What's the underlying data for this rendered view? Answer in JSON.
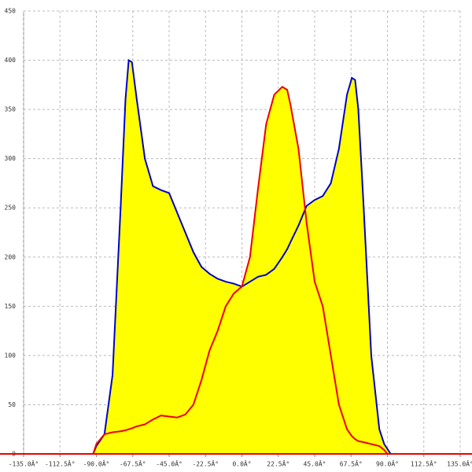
{
  "chart_data": {
    "type": "area",
    "x": [
      -92,
      -90,
      -85,
      -80,
      -75,
      -72,
      -70,
      -68,
      -65,
      -60,
      -55,
      -50,
      -45,
      -40,
      -35,
      -30,
      -25,
      -20,
      -15,
      -10,
      -5,
      0,
      5,
      10,
      15,
      20,
      25,
      28,
      30,
      35,
      40,
      45,
      50,
      55,
      60,
      65,
      68,
      70,
      72,
      75,
      80,
      85,
      88,
      90,
      92
    ],
    "series": [
      {
        "color": "#0000cc",
        "fill": "#ffff00",
        "values": [
          0,
          8,
          20,
          80,
          250,
          360,
          400,
          398,
          360,
          300,
          272,
          268,
          265,
          245,
          225,
          205,
          190,
          183,
          178,
          175,
          173,
          170,
          175,
          180,
          182,
          188,
          200,
          208,
          215,
          232,
          252,
          258,
          262,
          275,
          310,
          365,
          382,
          380,
          350,
          260,
          100,
          25,
          10,
          5,
          0
        ]
      },
      {
        "color": "#ee0000",
        "fill": "#ffff00",
        "values": [
          0,
          10,
          20,
          22,
          23,
          24,
          25,
          26,
          28,
          30,
          35,
          39,
          38,
          37,
          40,
          50,
          75,
          105,
          125,
          150,
          163,
          170,
          200,
          270,
          335,
          365,
          373,
          370,
          355,
          310,
          235,
          175,
          150,
          100,
          50,
          25,
          18,
          15,
          13,
          12,
          10,
          8,
          4,
          0,
          0
        ]
      }
    ],
    "xlim": [
      -135,
      135
    ],
    "xticks": [
      {
        "value": -135,
        "label": "-135.0Â°"
      },
      {
        "value": -112.5,
        "label": "-112.5Â°"
      },
      {
        "value": -90,
        "label": "-90.0Â°"
      },
      {
        "value": -67.5,
        "label": "-67.5Â°"
      },
      {
        "value": -45,
        "label": "-45.0Â°"
      },
      {
        "value": -22.5,
        "label": "-22.5Â°"
      },
      {
        "value": 0,
        "label": "0.0Â°"
      },
      {
        "value": 22.5,
        "label": "22.5Â°"
      },
      {
        "value": 45,
        "label": "45.0Â°"
      },
      {
        "value": 67.5,
        "label": "67.5Â°"
      },
      {
        "value": 90,
        "label": "90.0Â°"
      },
      {
        "value": 112.5,
        "label": "112.5Â°"
      },
      {
        "value": 135,
        "label": "135.0Â°"
      }
    ],
    "ylim": [
      0,
      450
    ],
    "yticks": [
      0,
      50,
      100,
      150,
      200,
      250,
      300,
      350,
      400,
      450
    ],
    "grid": true
  }
}
